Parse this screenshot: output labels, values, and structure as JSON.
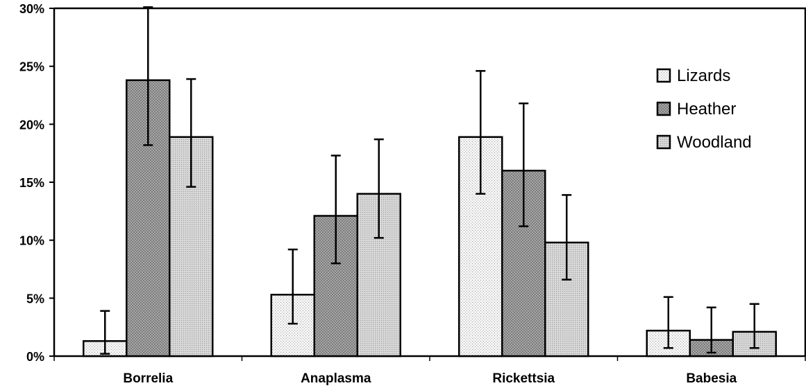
{
  "chart_data": {
    "type": "bar",
    "categories": [
      "Borrelia",
      "Anaplasma",
      "Rickettsia",
      "Babesia"
    ],
    "series": [
      {
        "name": "Lizards",
        "values": [
          1.3,
          5.3,
          18.9,
          2.2
        ],
        "err_low": [
          0.2,
          2.8,
          14.0,
          0.7
        ],
        "err_high": [
          3.9,
          9.2,
          24.6,
          5.1
        ],
        "pattern": "lizards"
      },
      {
        "name": "Heather",
        "values": [
          23.8,
          12.1,
          16.0,
          1.4
        ],
        "err_low": [
          18.2,
          8.0,
          11.2,
          0.3
        ],
        "err_high": [
          30.1,
          17.3,
          21.8,
          4.2
        ],
        "pattern": "heather"
      },
      {
        "name": "Woodland",
        "values": [
          18.9,
          14.0,
          9.8,
          2.1
        ],
        "err_low": [
          14.6,
          10.2,
          6.6,
          0.7
        ],
        "err_high": [
          23.9,
          18.7,
          13.9,
          4.5
        ],
        "pattern": "woodland"
      }
    ],
    "ylim": [
      0,
      30
    ],
    "yticks": [
      "0%",
      "5%",
      "10%",
      "15%",
      "20%",
      "25%",
      "30%"
    ],
    "ytick_values": [
      0,
      5,
      10,
      15,
      20,
      25,
      30
    ],
    "legend_position": "top-right",
    "grid": false,
    "error_bars": true
  }
}
